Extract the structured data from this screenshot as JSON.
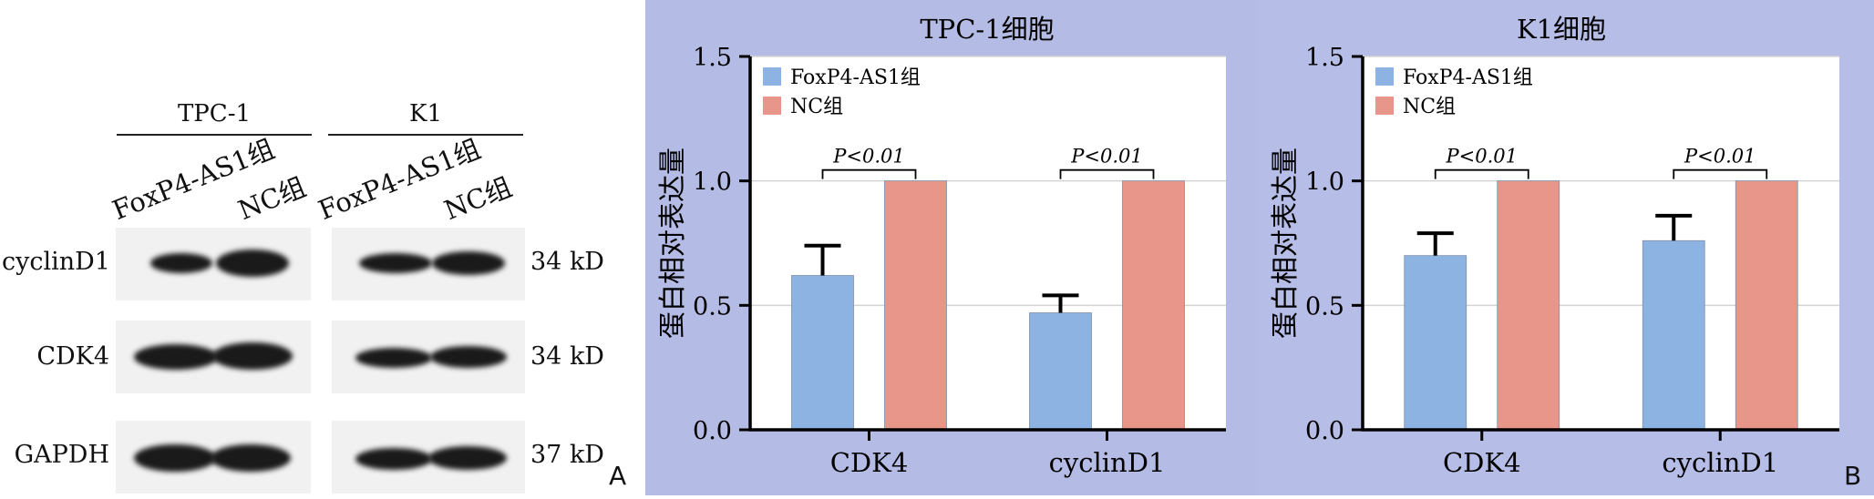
{
  "panel_a": {
    "letter": "A",
    "groups": [
      "TPC-1",
      "K1"
    ],
    "lanes": [
      "FoxP4-AS1组",
      "NC组",
      "FoxP4-AS1组",
      "NC组"
    ],
    "rows": [
      {
        "name": "cyclinD1",
        "kd": "34 kD"
      },
      {
        "name": "CDK4",
        "kd": "34 kD"
      },
      {
        "name": "GAPDH",
        "kd": "37 kD"
      }
    ]
  },
  "panel_b": {
    "letter": "B",
    "colors": {
      "foxp4": "#8db3e2",
      "nc": "#e8968a",
      "background": "#b4bce6",
      "plot_bg": "#ffffff"
    }
  },
  "chart_data": [
    {
      "type": "bar",
      "title": "TPC-1细胞",
      "ylabel": "蛋白相对表达量",
      "xlabel": "",
      "ylim": [
        0,
        1.5
      ],
      "yticks": [
        "0.0",
        "0.5",
        "1.0",
        "1.5"
      ],
      "grid": true,
      "legend": "top-left",
      "categories": [
        "CDK4",
        "cyclinD1"
      ],
      "series": [
        {
          "name": "FoxP4-AS1组",
          "values": [
            0.62,
            0.47
          ],
          "errors": [
            0.12,
            0.07
          ]
        },
        {
          "name": "NC组",
          "values": [
            1.0,
            1.0
          ],
          "errors": [
            0,
            0
          ]
        }
      ],
      "annotations": [
        "P<0.01",
        "P<0.01"
      ]
    },
    {
      "type": "bar",
      "title": "K1细胞",
      "ylabel": "蛋白相对表达量",
      "xlabel": "",
      "ylim": [
        0,
        1.5
      ],
      "yticks": [
        "0.0",
        "0.5",
        "1.0",
        "1.5"
      ],
      "grid": true,
      "legend": "top-left",
      "categories": [
        "CDK4",
        "cyclinD1"
      ],
      "series": [
        {
          "name": "FoxP4-AS1组",
          "values": [
            0.7,
            0.76
          ],
          "errors": [
            0.09,
            0.1
          ]
        },
        {
          "name": "NC组",
          "values": [
            1.0,
            1.0
          ],
          "errors": [
            0,
            0
          ]
        }
      ],
      "annotations": [
        "P<0.01",
        "P<0.01"
      ]
    }
  ]
}
